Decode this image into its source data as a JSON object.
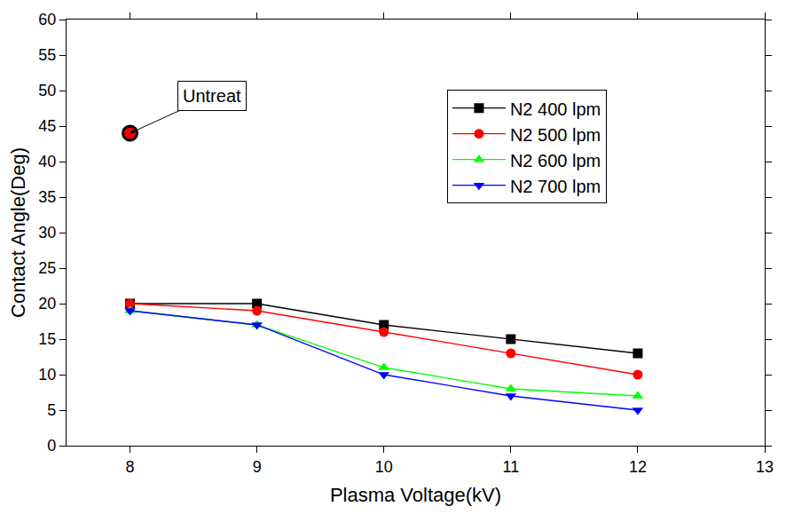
{
  "chart_data": {
    "type": "line",
    "x_label": "Plasma Voltage(kV)",
    "y_label": "Contact Angle(Deg)",
    "x": [
      8,
      9,
      10,
      11,
      12
    ],
    "series": [
      {
        "name": "N2 400 lpm",
        "color": "#000000",
        "marker": "square",
        "values": [
          20,
          20,
          17,
          15,
          13
        ]
      },
      {
        "name": "N2 500 lpm",
        "color": "#ff0000",
        "marker": "circle",
        "values": [
          20,
          19,
          16,
          13,
          10
        ]
      },
      {
        "name": "N2 600 lpm",
        "color": "#00ff00",
        "marker": "triangle-up",
        "values": [
          19,
          17,
          11,
          8,
          7
        ]
      },
      {
        "name": "N2 700 lpm",
        "color": "#0000ff",
        "marker": "triangle-down",
        "values": [
          19,
          17,
          10,
          7,
          5
        ]
      }
    ],
    "annotations": [
      {
        "text": "Untreat",
        "x": 8,
        "y": 44
      }
    ],
    "xlim": [
      7.5,
      13
    ],
    "xticks": [
      8,
      9,
      10,
      11,
      12,
      13
    ],
    "ylim": [
      0,
      60
    ],
    "yticks": [
      0,
      5,
      10,
      15,
      20,
      25,
      30,
      35,
      40,
      45,
      50,
      55,
      60
    ],
    "grid": false,
    "legend": "top right"
  }
}
